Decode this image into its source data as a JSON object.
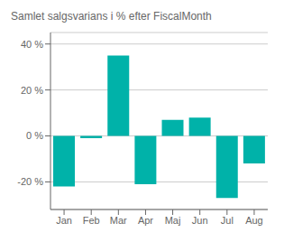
{
  "chart_data": {
    "type": "bar",
    "title": "Samlet salgsvarians i % efter FiscalMonth",
    "categories": [
      "Jan",
      "Feb",
      "Mar",
      "Apr",
      "Maj",
      "Jun",
      "Jul",
      "Aug"
    ],
    "values": [
      -22,
      -1,
      35,
      -21,
      7,
      8,
      -27,
      -12
    ],
    "color": "#00B2A9",
    "ylim": [
      -32,
      45
    ],
    "yticks": [
      {
        "value": -20,
        "label": "-20 %"
      },
      {
        "value": 0,
        "label": "0 %"
      },
      {
        "value": 20,
        "label": "20 %"
      },
      {
        "value": 40,
        "label": "40 %"
      }
    ],
    "grid": true
  }
}
